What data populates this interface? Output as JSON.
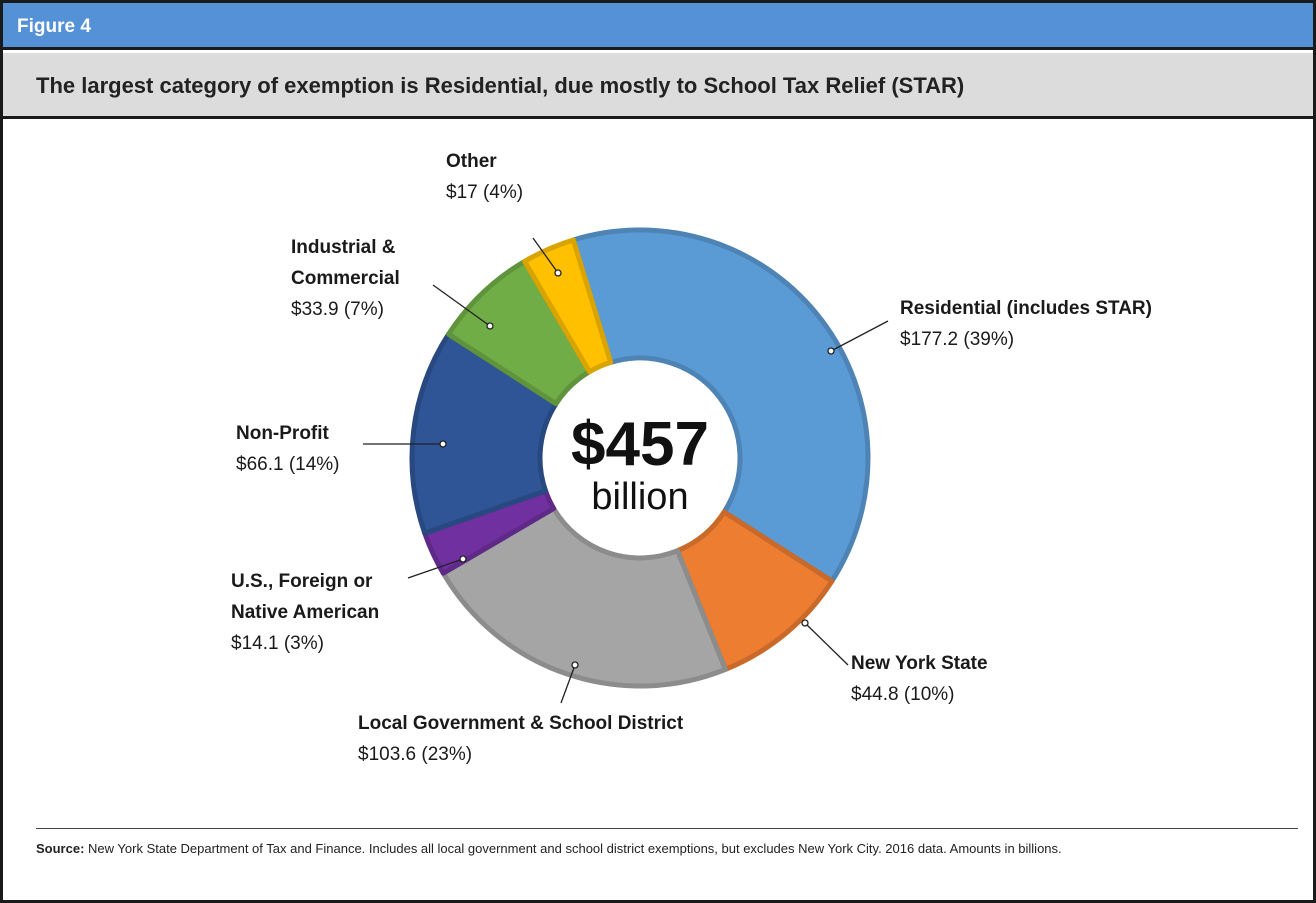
{
  "figure_label": "Figure 4",
  "chart_data": {
    "type": "donut",
    "title": "The largest category of exemption is Residential, due mostly to School Tax Relief (STAR)",
    "categories": [
      "Residential (includes STAR)",
      "New York State",
      "Local Government & School District",
      "U.S., Foreign or Native American",
      "Non-Profit",
      "Industrial & Commercial",
      "Other"
    ],
    "values": [
      177.2,
      44.8,
      103.6,
      14.1,
      66.1,
      33.9,
      17
    ],
    "value_labels": [
      "$177.2 (39%)",
      "$44.8 (10%)",
      "$103.6 (23%)",
      "$14.1 (3%)",
      "$66.1 (14%)",
      "$33.9 (7%)",
      "$17 (4%)"
    ],
    "colors": [
      "#5b9bd5",
      "#ed7d31",
      "#a5a5a5",
      "#7030a0",
      "#2f5597",
      "#70ad47",
      "#ffc000"
    ],
    "center_value": "$457",
    "center_label": "billion"
  },
  "source_label": "Source:",
  "source": "New York State Department of Tax and Finance. Includes all local government and school district exemptions, but excludes New York City.  2016 data. Amounts in billions."
}
